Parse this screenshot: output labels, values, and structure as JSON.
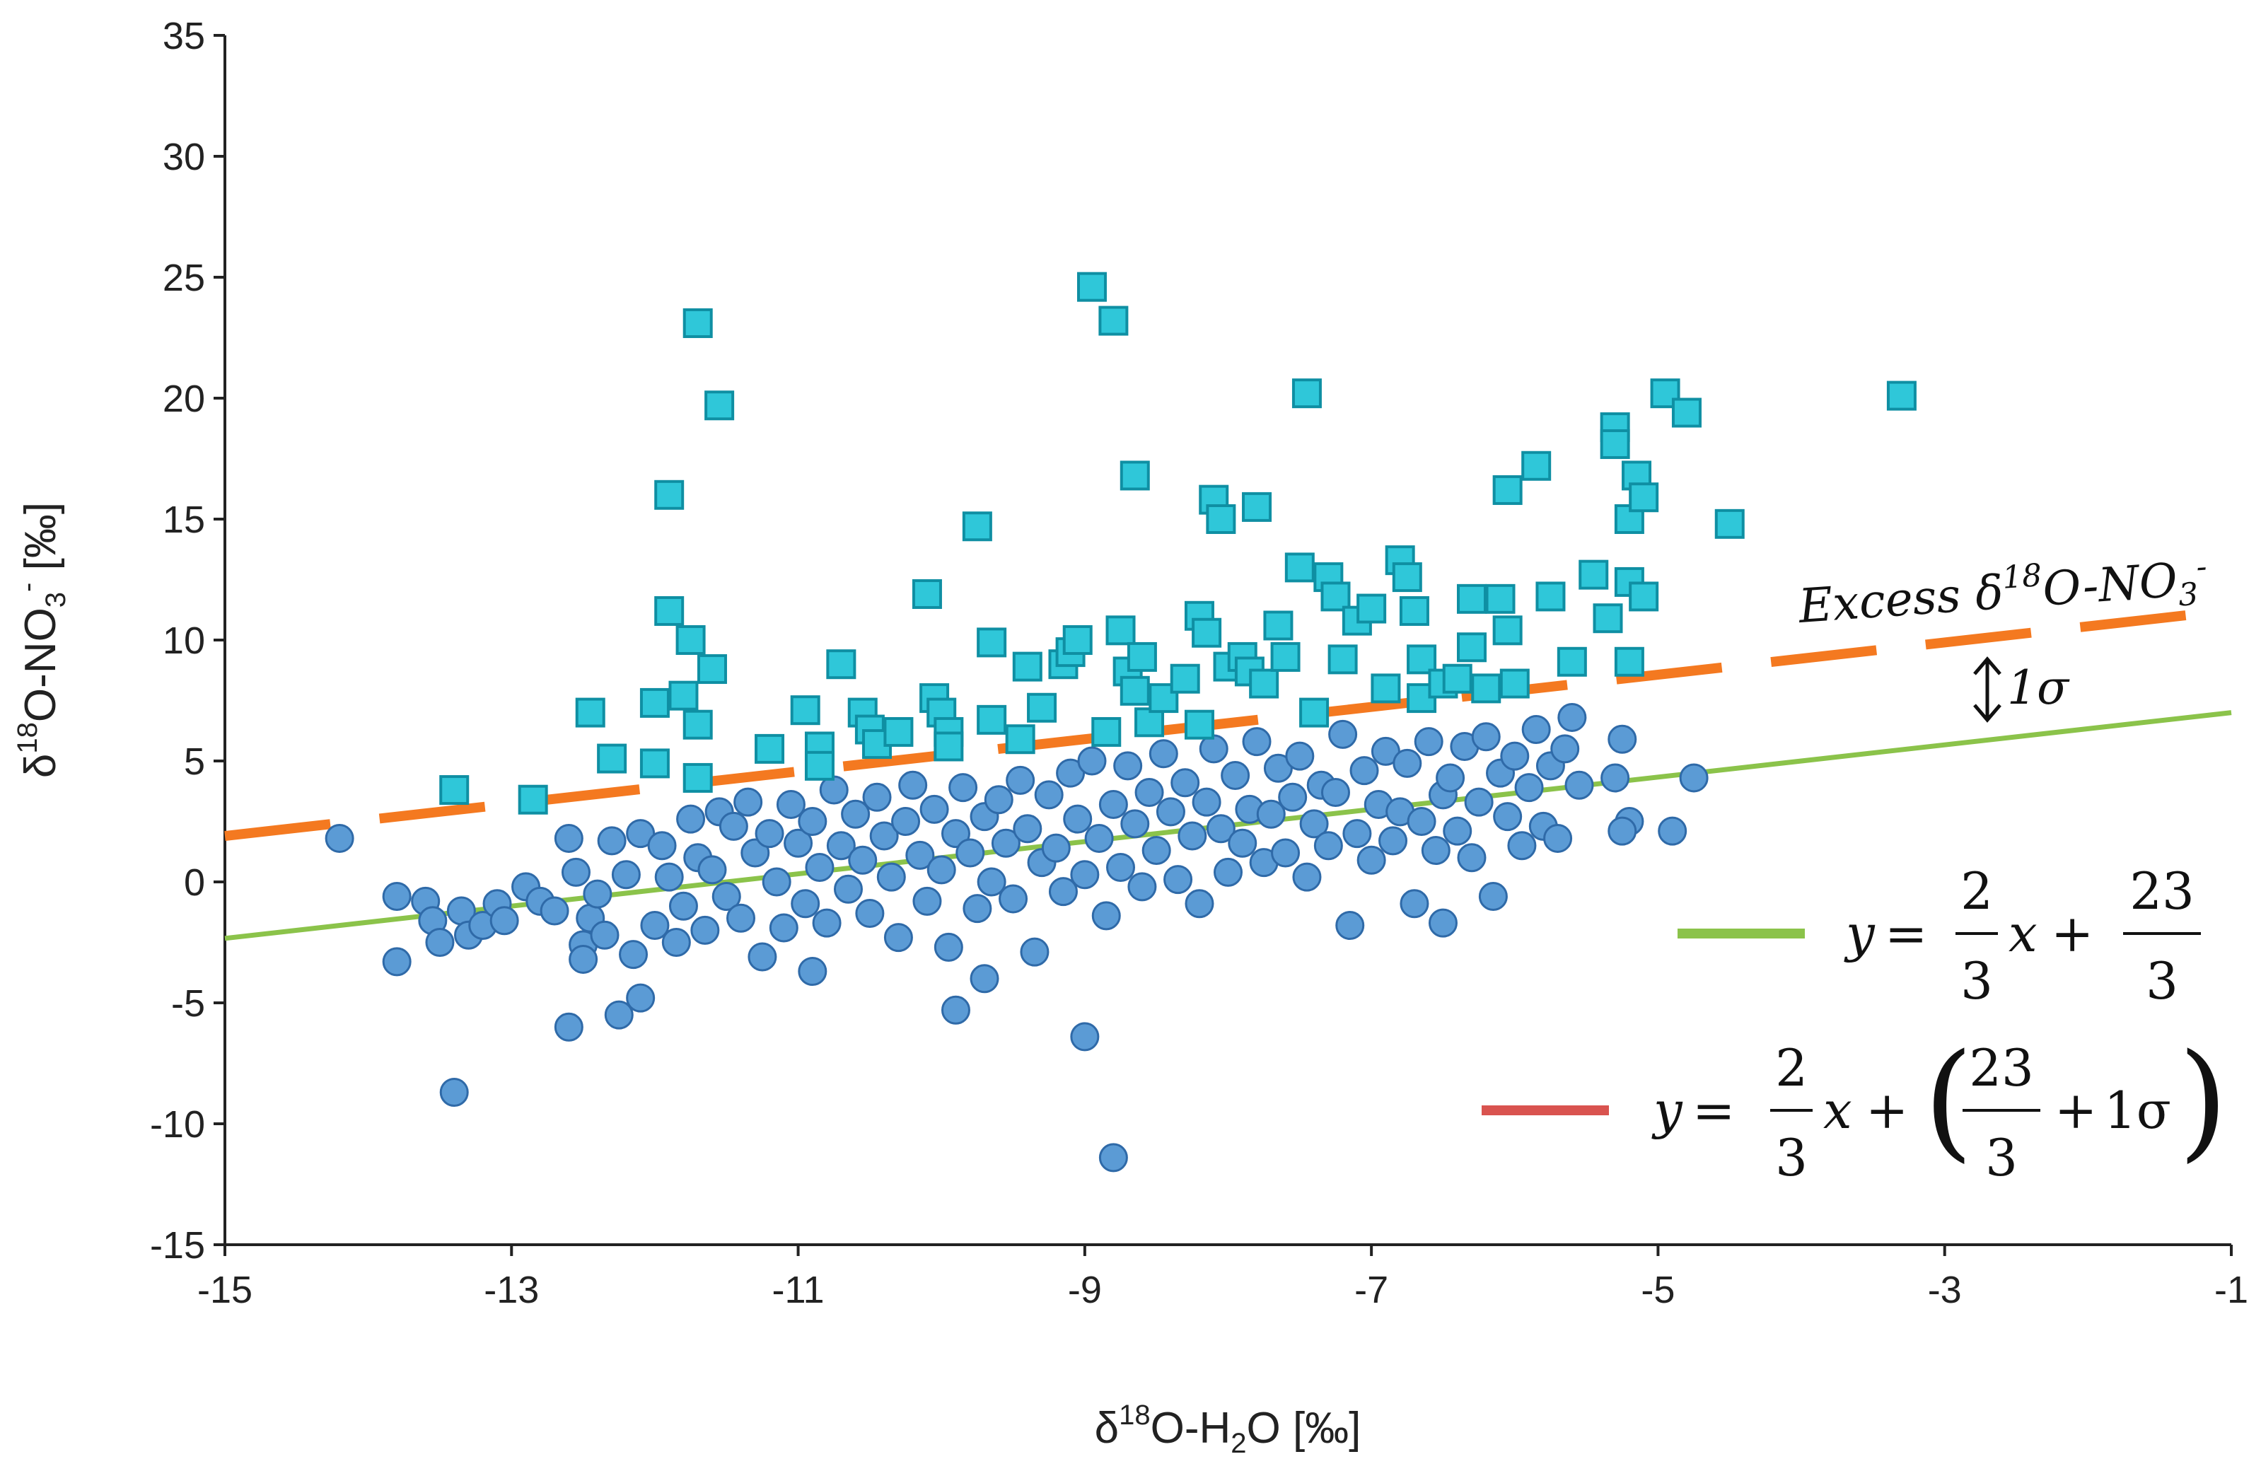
{
  "chart_data": {
    "type": "scatter",
    "title": "",
    "xlabel": {
      "base": "δ",
      "sup": "18",
      "rest1": "O-H",
      "sub": "2",
      "rest2": "O [‰]"
    },
    "ylabel": {
      "base": "δ",
      "sup": "18",
      "rest1": "O-NO",
      "sub": "3",
      "sup2": "-",
      "rest2": " [‰]"
    },
    "xlim": [
      -15,
      -1
    ],
    "ylim": [
      -15,
      35
    ],
    "xticks": [
      -15,
      -13,
      -11,
      -9,
      -7,
      -5,
      -3,
      -1
    ],
    "yticks": [
      -15,
      -10,
      -5,
      0,
      5,
      10,
      15,
      20,
      25,
      30,
      35
    ],
    "grid": false,
    "colors": {
      "circle_fill": "#5b9bd5",
      "circle_stroke": "#2f6aa8",
      "square_fill": "#2fc7d9",
      "square_stroke": "#0f8fa3",
      "green_line": "#8bc34a",
      "orange_line": "#f47920",
      "legend_red": "#d9534f"
    },
    "lines": [
      {
        "name": "green",
        "slope": 0.6667,
        "intercept": 7.6667,
        "style": "solid"
      },
      {
        "name": "orange",
        "slope": 0.6667,
        "intercept": 11.9,
        "style": "dashed"
      }
    ],
    "series": [
      {
        "name": "circles",
        "marker": "circle",
        "points": [
          [
            -14.2,
            1.8
          ],
          [
            -13.8,
            -0.6
          ],
          [
            -13.8,
            -3.3
          ],
          [
            -13.6,
            -0.8
          ],
          [
            -13.55,
            -1.6
          ],
          [
            -13.5,
            -2.5
          ],
          [
            -13.4,
            -8.7
          ],
          [
            -13.35,
            -1.2
          ],
          [
            -13.3,
            -2.2
          ],
          [
            -13.2,
            -1.8
          ],
          [
            -13.1,
            -0.9
          ],
          [
            -13.05,
            -1.6
          ],
          [
            -12.9,
            -0.2
          ],
          [
            -12.8,
            -0.8
          ],
          [
            -12.7,
            -1.2
          ],
          [
            -12.6,
            1.8
          ],
          [
            -12.6,
            -6.0
          ],
          [
            -12.55,
            0.4
          ],
          [
            -12.5,
            -2.6
          ],
          [
            -12.5,
            -3.2
          ],
          [
            -12.45,
            -1.5
          ],
          [
            -12.4,
            -0.5
          ],
          [
            -12.35,
            -2.2
          ],
          [
            -12.3,
            1.7
          ],
          [
            -12.25,
            -5.5
          ],
          [
            -12.2,
            0.3
          ],
          [
            -12.15,
            -3.0
          ],
          [
            -12.1,
            2.0
          ],
          [
            -12.1,
            -4.8
          ],
          [
            -12.0,
            -1.8
          ],
          [
            -11.95,
            1.5
          ],
          [
            -11.9,
            0.2
          ],
          [
            -11.85,
            -2.5
          ],
          [
            -11.8,
            -1.0
          ],
          [
            -11.75,
            2.6
          ],
          [
            -11.7,
            1.0
          ],
          [
            -11.65,
            -2.0
          ],
          [
            -11.6,
            0.5
          ],
          [
            -11.55,
            2.9
          ],
          [
            -11.5,
            -0.6
          ],
          [
            -11.45,
            2.3
          ],
          [
            -11.4,
            -1.5
          ],
          [
            -11.35,
            3.3
          ],
          [
            -11.3,
            1.2
          ],
          [
            -11.25,
            -3.1
          ],
          [
            -11.2,
            2.0
          ],
          [
            -11.15,
            0.0
          ],
          [
            -11.1,
            -1.9
          ],
          [
            -11.05,
            3.2
          ],
          [
            -11.0,
            1.6
          ],
          [
            -10.95,
            -0.9
          ],
          [
            -10.9,
            -3.7
          ],
          [
            -10.9,
            2.5
          ],
          [
            -10.85,
            0.6
          ],
          [
            -10.8,
            -1.7
          ],
          [
            -10.75,
            3.8
          ],
          [
            -10.7,
            1.5
          ],
          [
            -10.65,
            -0.3
          ],
          [
            -10.6,
            2.8
          ],
          [
            -10.55,
            0.9
          ],
          [
            -10.5,
            -1.3
          ],
          [
            -10.45,
            3.5
          ],
          [
            -10.4,
            1.9
          ],
          [
            -10.35,
            0.2
          ],
          [
            -10.3,
            -2.3
          ],
          [
            -10.25,
            2.5
          ],
          [
            -10.2,
            4.0
          ],
          [
            -10.15,
            1.1
          ],
          [
            -10.1,
            -0.8
          ],
          [
            -10.05,
            3.0
          ],
          [
            -10.0,
            0.5
          ],
          [
            -9.95,
            -2.7
          ],
          [
            -9.9,
            2.0
          ],
          [
            -9.9,
            -5.3
          ],
          [
            -9.85,
            3.9
          ],
          [
            -9.8,
            1.2
          ],
          [
            -9.75,
            -1.1
          ],
          [
            -9.7,
            2.7
          ],
          [
            -9.7,
            -4.0
          ],
          [
            -9.65,
            0.0
          ],
          [
            -9.6,
            3.4
          ],
          [
            -9.55,
            1.6
          ],
          [
            -9.5,
            -0.7
          ],
          [
            -9.45,
            4.2
          ],
          [
            -9.4,
            2.2
          ],
          [
            -9.35,
            -2.9
          ],
          [
            -9.3,
            0.8
          ],
          [
            -9.25,
            3.6
          ],
          [
            -9.2,
            1.4
          ],
          [
            -9.15,
            -0.4
          ],
          [
            -9.1,
            4.5
          ],
          [
            -9.05,
            2.6
          ],
          [
            -9.0,
            0.3
          ],
          [
            -9.0,
            -6.4
          ],
          [
            -8.95,
            5.0
          ],
          [
            -8.9,
            1.8
          ],
          [
            -8.85,
            -1.4
          ],
          [
            -8.8,
            3.2
          ],
          [
            -8.8,
            -11.4
          ],
          [
            -8.75,
            0.6
          ],
          [
            -8.7,
            4.8
          ],
          [
            -8.65,
            2.4
          ],
          [
            -8.6,
            -0.2
          ],
          [
            -8.55,
            3.7
          ],
          [
            -8.5,
            1.3
          ],
          [
            -8.45,
            5.3
          ],
          [
            -8.4,
            2.9
          ],
          [
            -8.35,
            0.1
          ],
          [
            -8.3,
            4.1
          ],
          [
            -8.25,
            1.9
          ],
          [
            -8.2,
            -0.9
          ],
          [
            -8.15,
            3.3
          ],
          [
            -8.1,
            5.5
          ],
          [
            -8.05,
            2.2
          ],
          [
            -8.0,
            0.4
          ],
          [
            -7.95,
            4.4
          ],
          [
            -7.9,
            1.6
          ],
          [
            -7.85,
            3.0
          ],
          [
            -7.8,
            5.8
          ],
          [
            -7.75,
            0.8
          ],
          [
            -7.7,
            2.8
          ],
          [
            -7.65,
            4.7
          ],
          [
            -7.6,
            1.2
          ],
          [
            -7.55,
            3.5
          ],
          [
            -7.5,
            5.2
          ],
          [
            -7.45,
            0.2
          ],
          [
            -7.4,
            2.4
          ],
          [
            -7.35,
            4.0
          ],
          [
            -7.3,
            1.5
          ],
          [
            -7.25,
            3.7
          ],
          [
            -7.2,
            6.1
          ],
          [
            -7.15,
            -1.8
          ],
          [
            -7.1,
            2.0
          ],
          [
            -7.05,
            4.6
          ],
          [
            -7.0,
            0.9
          ],
          [
            -6.95,
            3.2
          ],
          [
            -6.9,
            5.4
          ],
          [
            -6.85,
            1.7
          ],
          [
            -6.8,
            2.9
          ],
          [
            -6.75,
            4.9
          ],
          [
            -6.7,
            -0.9
          ],
          [
            -6.65,
            2.5
          ],
          [
            -6.6,
            5.8
          ],
          [
            -6.55,
            1.3
          ],
          [
            -6.5,
            3.6
          ],
          [
            -6.5,
            -1.7
          ],
          [
            -6.45,
            4.3
          ],
          [
            -6.4,
            2.1
          ],
          [
            -6.35,
            5.6
          ],
          [
            -6.3,
            1.0
          ],
          [
            -6.25,
            3.3
          ],
          [
            -6.2,
            6.0
          ],
          [
            -6.15,
            -0.6
          ],
          [
            -6.1,
            4.5
          ],
          [
            -6.05,
            2.7
          ],
          [
            -6.0,
            5.2
          ],
          [
            -5.95,
            1.5
          ],
          [
            -5.9,
            3.9
          ],
          [
            -5.85,
            6.3
          ],
          [
            -5.8,
            2.3
          ],
          [
            -5.75,
            4.8
          ],
          [
            -5.7,
            1.8
          ],
          [
            -5.65,
            5.5
          ],
          [
            -5.6,
            6.8
          ],
          [
            -5.55,
            4.0
          ],
          [
            -5.3,
            4.3
          ],
          [
            -5.25,
            5.9
          ],
          [
            -5.2,
            2.5
          ],
          [
            -5.25,
            2.1
          ],
          [
            -4.9,
            2.1
          ],
          [
            -4.75,
            4.3
          ]
        ]
      },
      {
        "name": "squares",
        "marker": "square",
        "points": [
          [
            -13.4,
            3.8
          ],
          [
            -12.85,
            3.4
          ],
          [
            -12.45,
            7.0
          ],
          [
            -12.3,
            5.1
          ],
          [
            -12.0,
            4.9
          ],
          [
            -12.0,
            7.4
          ],
          [
            -11.9,
            16.0
          ],
          [
            -11.9,
            11.2
          ],
          [
            -11.8,
            7.7
          ],
          [
            -11.75,
            10.0
          ],
          [
            -11.7,
            23.1
          ],
          [
            -11.7,
            6.5
          ],
          [
            -11.7,
            4.3
          ],
          [
            -11.6,
            8.8
          ],
          [
            -11.55,
            19.7
          ],
          [
            -11.2,
            5.5
          ],
          [
            -10.95,
            7.1
          ],
          [
            -10.85,
            5.6
          ],
          [
            -10.85,
            4.8
          ],
          [
            -10.7,
            9.0
          ],
          [
            -10.55,
            7.0
          ],
          [
            -10.5,
            6.3
          ],
          [
            -10.45,
            5.7
          ],
          [
            -10.3,
            6.2
          ],
          [
            -10.1,
            11.9
          ],
          [
            -10.05,
            7.6
          ],
          [
            -10.0,
            7.0
          ],
          [
            -9.95,
            6.2
          ],
          [
            -9.95,
            5.6
          ],
          [
            -9.75,
            14.7
          ],
          [
            -9.65,
            9.9
          ],
          [
            -9.65,
            6.7
          ],
          [
            -9.45,
            5.9
          ],
          [
            -9.4,
            8.9
          ],
          [
            -9.3,
            7.2
          ],
          [
            -9.15,
            9.0
          ],
          [
            -9.1,
            9.5
          ],
          [
            -9.05,
            10.0
          ],
          [
            -8.95,
            24.6
          ],
          [
            -8.85,
            6.2
          ],
          [
            -8.8,
            23.2
          ],
          [
            -8.75,
            10.4
          ],
          [
            -8.7,
            8.7
          ],
          [
            -8.65,
            7.9
          ],
          [
            -8.65,
            16.8
          ],
          [
            -8.6,
            9.3
          ],
          [
            -8.55,
            6.6
          ],
          [
            -8.45,
            7.6
          ],
          [
            -8.3,
            8.4
          ],
          [
            -8.2,
            6.5
          ],
          [
            -8.2,
            11.0
          ],
          [
            -8.15,
            10.3
          ],
          [
            -8.1,
            15.8
          ],
          [
            -8.05,
            15.0
          ],
          [
            -8.0,
            8.9
          ],
          [
            -7.9,
            9.3
          ],
          [
            -7.85,
            8.7
          ],
          [
            -7.8,
            15.5
          ],
          [
            -7.75,
            8.2
          ],
          [
            -7.65,
            10.6
          ],
          [
            -7.6,
            9.3
          ],
          [
            -7.5,
            13.0
          ],
          [
            -7.45,
            20.2
          ],
          [
            -7.4,
            7.0
          ],
          [
            -7.3,
            12.6
          ],
          [
            -7.25,
            11.8
          ],
          [
            -7.2,
            9.2
          ],
          [
            -7.1,
            10.8
          ],
          [
            -7.0,
            11.3
          ],
          [
            -6.9,
            8.0
          ],
          [
            -6.8,
            13.3
          ],
          [
            -6.75,
            12.6
          ],
          [
            -6.7,
            11.2
          ],
          [
            -6.65,
            9.2
          ],
          [
            -6.65,
            7.6
          ],
          [
            -6.5,
            8.2
          ],
          [
            -6.4,
            8.4
          ],
          [
            -6.3,
            11.7
          ],
          [
            -6.3,
            9.7
          ],
          [
            -6.2,
            8.0
          ],
          [
            -6.1,
            11.7
          ],
          [
            -6.05,
            10.4
          ],
          [
            -6.0,
            8.2
          ],
          [
            -6.05,
            16.2
          ],
          [
            -5.85,
            17.2
          ],
          [
            -5.75,
            11.8
          ],
          [
            -5.6,
            9.1
          ],
          [
            -5.45,
            12.7
          ],
          [
            -5.35,
            10.9
          ],
          [
            -5.3,
            18.8
          ],
          [
            -5.3,
            18.1
          ],
          [
            -5.2,
            15.0
          ],
          [
            -5.2,
            12.4
          ],
          [
            -5.2,
            9.1
          ],
          [
            -5.15,
            16.8
          ],
          [
            -5.1,
            15.9
          ],
          [
            -5.1,
            11.8
          ],
          [
            -4.95,
            20.2
          ],
          [
            -4.8,
            19.4
          ],
          [
            -4.5,
            14.8
          ],
          [
            -3.3,
            20.1
          ]
        ]
      }
    ],
    "annotations": {
      "excess": {
        "prefix": "Excess δ",
        "sup": "18",
        "mid": "O-NO",
        "sub": "3",
        "sup2": "-"
      },
      "sigma": "1σ"
    },
    "legend": {
      "placement": "bottom-right",
      "entries": [
        {
          "y": "y",
          "eq": "=",
          "num": "2",
          "den": "3",
          "x": "x",
          "plus": "+",
          "num2": "23",
          "den2": "3"
        },
        {
          "y": "y",
          "eq": "=",
          "num": "2",
          "den": "3",
          "x": "x",
          "plus": "+",
          "lparen": "(",
          "num2": "23",
          "den2": "3",
          "plus2": "+",
          "sigma": "1σ",
          "rparen": ")"
        }
      ]
    }
  }
}
